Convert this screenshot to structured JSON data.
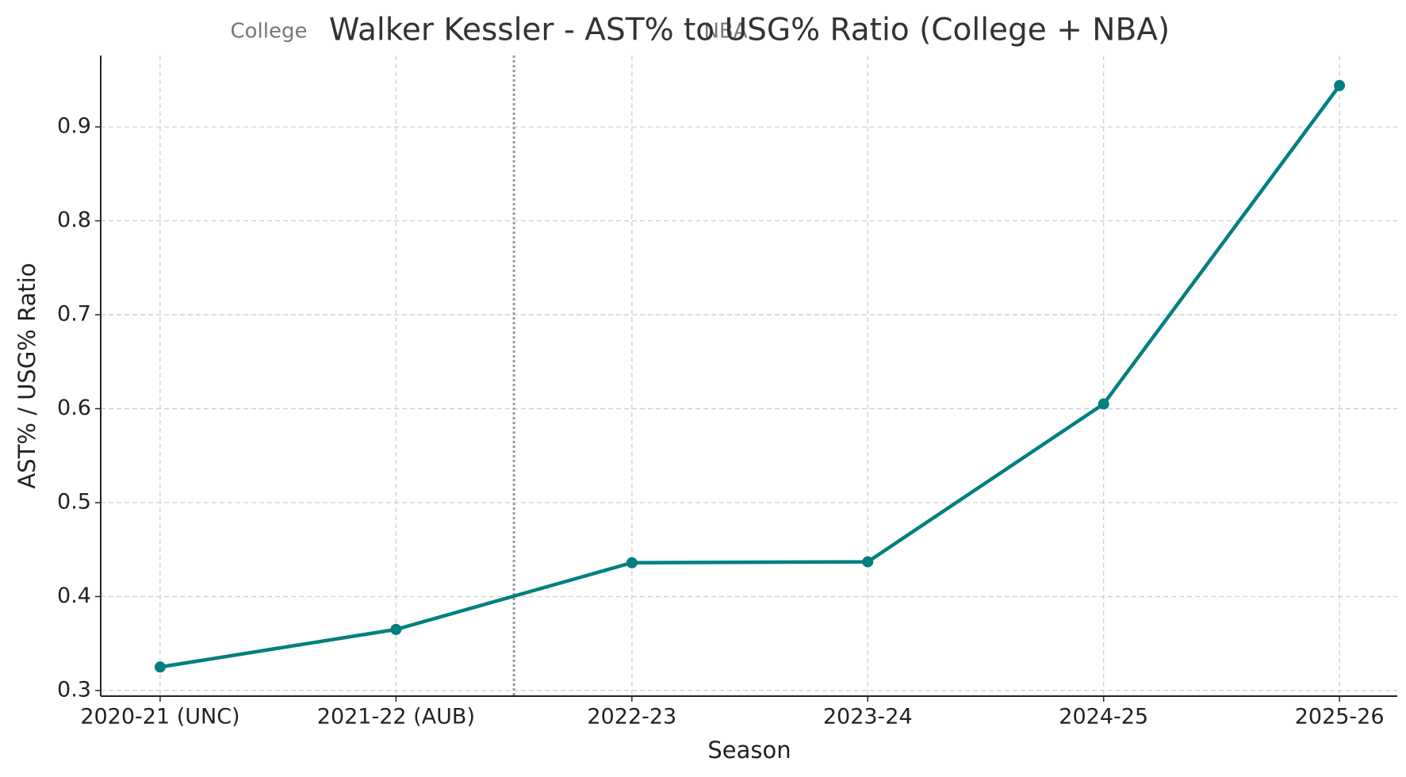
{
  "chart_data": {
    "type": "line",
    "title": "Walker Kessler - AST% to USG% Ratio (College + NBA)",
    "annotations": [
      "College",
      "NBA"
    ],
    "xlabel": "Season",
    "ylabel": "AST% / USG% Ratio",
    "categories": [
      "2020-21 (UNC)",
      "2021-22 (AUB)",
      "2022-23",
      "2023-24",
      "2024-25",
      "2025-26"
    ],
    "values": [
      0.325,
      0.365,
      0.436,
      0.437,
      0.605,
      0.944
    ],
    "color": "#007f7f",
    "ylim": [
      0.294,
      0.976
    ],
    "yticks": [
      0.3,
      0.4,
      0.5,
      0.6,
      0.7,
      0.8,
      0.9
    ],
    "grid": true
  }
}
